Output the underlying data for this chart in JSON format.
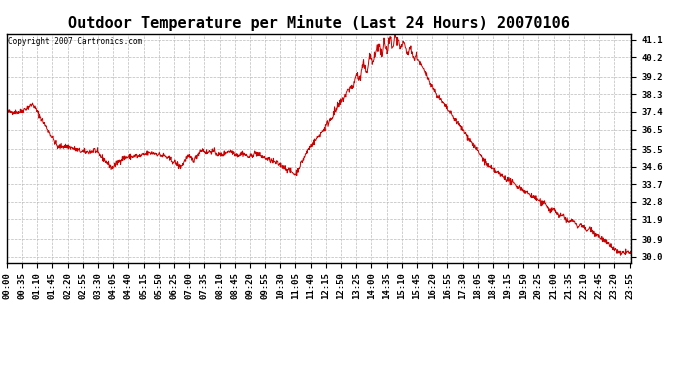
{
  "title": "Outdoor Temperature per Minute (Last 24 Hours) 20070106",
  "copyright_text": "Copyright 2007 Cartronics.com",
  "line_color": "#cc0000",
  "bg_color": "#ffffff",
  "plot_bg_color": "#ffffff",
  "grid_color": "#bbbbbb",
  "ylim": [
    29.7,
    41.4
  ],
  "yticks": [
    30.0,
    30.9,
    31.9,
    32.8,
    33.7,
    34.6,
    35.5,
    36.5,
    37.4,
    38.3,
    39.2,
    40.2,
    41.1
  ],
  "title_fontsize": 11,
  "tick_fontsize": 6.5,
  "xtick_interval_minutes": 35
}
